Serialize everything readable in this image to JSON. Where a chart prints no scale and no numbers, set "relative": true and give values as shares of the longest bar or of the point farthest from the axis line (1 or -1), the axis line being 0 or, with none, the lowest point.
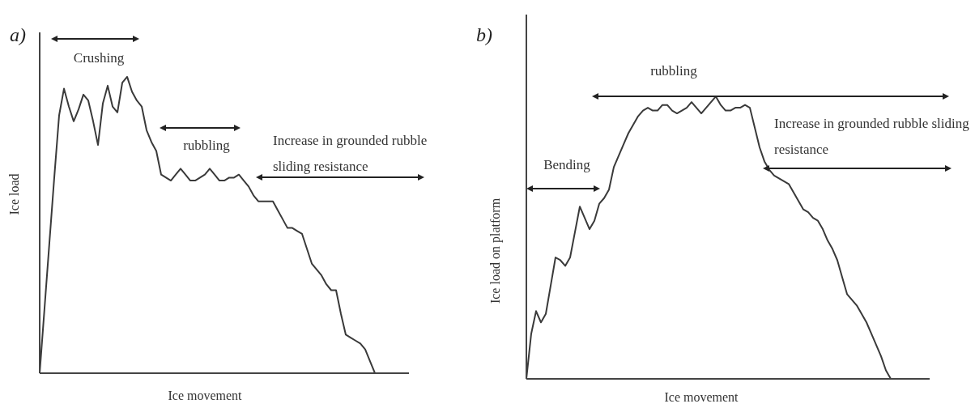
{
  "chart_data": [
    {
      "type": "line",
      "title": "a)",
      "xlabel": "Ice movement",
      "ylabel": "Ice load",
      "relative": true,
      "color": "#3a3a3a",
      "marker": "none",
      "line_style": "solid",
      "grid": false,
      "legend": false,
      "annotations": [
        "Crushing",
        "rubbling",
        "Increase in grounded rubble sliding resistance"
      ],
      "categories": [
        null,
        null,
        null,
        null,
        null,
        null,
        null,
        null,
        null,
        null,
        null,
        null,
        null,
        null,
        null,
        null,
        null,
        null,
        null,
        null,
        null,
        null,
        null,
        null,
        null,
        null,
        null,
        null,
        null,
        null,
        null,
        null,
        null,
        null,
        null,
        null,
        null,
        null,
        null,
        null,
        null,
        null,
        null,
        null,
        null,
        null,
        null,
        null,
        null,
        null,
        null,
        null,
        null,
        null,
        null,
        null,
        null,
        null,
        null,
        null,
        null,
        null,
        null,
        null,
        null,
        null,
        null,
        null,
        null,
        null,
        null,
        null,
        null,
        null,
        null,
        null,
        null
      ],
      "values": [
        0,
        0.22,
        0.44,
        0.66,
        0.87,
        0.96,
        0.9,
        0.85,
        0.89,
        0.94,
        0.92,
        0.85,
        0.77,
        0.91,
        0.97,
        0.9,
        0.88,
        0.98,
        1,
        0.95,
        0.92,
        0.9,
        0.82,
        0.78,
        0.75,
        0.67,
        0.66,
        0.65,
        0.67,
        0.69,
        0.67,
        0.65,
        0.65,
        0.66,
        0.67,
        0.69,
        0.67,
        0.65,
        0.65,
        0.66,
        0.66,
        0.67,
        0.65,
        0.63,
        0.6,
        0.58,
        0.58,
        0.58,
        0.58,
        0.55,
        0.52,
        0.49,
        0.49,
        0.48,
        0.47,
        0.42,
        0.37,
        0.35,
        0.33,
        0.3,
        0.28,
        0.28,
        0.2,
        0.13,
        0.12,
        0.11,
        0.1,
        0.08,
        0.04,
        0,
        0,
        0,
        0,
        0,
        0,
        0,
        0
      ]
    },
    {
      "type": "line",
      "title": "b)",
      "xlabel": "Ice movement",
      "ylabel": "Ice load on platform",
      "relative": true,
      "color": "#3a3a3a",
      "marker": "none",
      "line_style": "solid",
      "grid": false,
      "legend": false,
      "annotations": [
        "rubbling",
        "Bending",
        "Increase in grounded rubble sliding resistance"
      ],
      "categories": [
        null,
        null,
        null,
        null,
        null,
        null,
        null,
        null,
        null,
        null,
        null,
        null,
        null,
        null,
        null,
        null,
        null,
        null,
        null,
        null,
        null,
        null,
        null,
        null,
        null,
        null,
        null,
        null,
        null,
        null,
        null,
        null,
        null,
        null,
        null,
        null,
        null,
        null,
        null,
        null,
        null,
        null,
        null,
        null,
        null,
        null,
        null,
        null,
        null,
        null,
        null,
        null,
        null,
        null,
        null,
        null,
        null,
        null,
        null,
        null,
        null,
        null,
        null,
        null,
        null,
        null,
        null,
        null,
        null,
        null,
        null,
        null,
        null,
        null,
        null,
        null,
        null,
        null,
        null,
        null,
        null,
        null,
        null,
        null
      ],
      "values": [
        0,
        0.16,
        0.24,
        0.2,
        0.23,
        0.33,
        0.43,
        0.42,
        0.4,
        0.43,
        0.52,
        0.61,
        0.57,
        0.53,
        0.56,
        0.62,
        0.64,
        0.67,
        0.75,
        0.79,
        0.83,
        0.87,
        0.9,
        0.93,
        0.95,
        0.96,
        0.95,
        0.95,
        0.97,
        0.97,
        0.95,
        0.94,
        0.95,
        0.96,
        0.98,
        0.96,
        0.94,
        0.96,
        0.98,
        1,
        0.97,
        0.95,
        0.95,
        0.96,
        0.96,
        0.97,
        0.96,
        0.89,
        0.82,
        0.77,
        0.74,
        0.72,
        0.71,
        0.7,
        0.69,
        0.66,
        0.63,
        0.6,
        0.59,
        0.57,
        0.56,
        0.53,
        0.49,
        0.46,
        0.42,
        0.36,
        0.3,
        0.28,
        0.26,
        0.23,
        0.2,
        0.16,
        0.12,
        0.08,
        0.03,
        0,
        0,
        0,
        0,
        0,
        0,
        0,
        0,
        0
      ]
    }
  ]
}
